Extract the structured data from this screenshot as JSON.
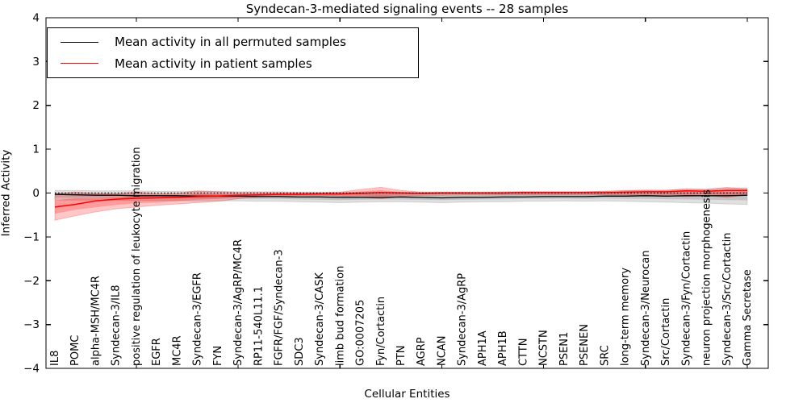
{
  "figure": {
    "title": "Syndecan-3-mediated signaling events -- 28 samples",
    "xlabel": "Cellular Entities",
    "ylabel": "Inferred Activity"
  },
  "legend": {
    "position": "upper-left",
    "items": [
      {
        "label": "Mean activity in all permuted samples",
        "color": "#000000"
      },
      {
        "label": "Mean activity in patient samples",
        "color": "#ff0000"
      }
    ]
  },
  "chart_data": {
    "type": "line",
    "title": "Syndecan-3-mediated signaling events -- 28 samples",
    "xlabel": "Cellular Entities",
    "ylabel": "Inferred Activity",
    "ylim": [
      -4,
      4
    ],
    "yticks": [
      4,
      3,
      2,
      1,
      0,
      -1,
      -2,
      -3,
      -4
    ],
    "xtick_positions": [
      4,
      9,
      14,
      19,
      24,
      29,
      34
    ],
    "grid": false,
    "zero_reference_line": 0,
    "categories": [
      "IL8",
      "POMC",
      "alpha-MSH/MC4R",
      "Syndecan-3/IL8",
      "positive regulation of leukocyte migration",
      "EGFR",
      "MC4R",
      "Syndecan-3/EGFR",
      "FYN",
      "Syndecan-3/AgRP/MC4R",
      "RP11-540L11.1",
      "FGFR/FGF/Syndecan-3",
      "SDC3",
      "Syndecan-3/CASK",
      "limb bud formation",
      "GO:0007205",
      "Fyn/Cortactin",
      "PTN",
      "AGRP",
      "NCAN",
      "Syndecan-3/AgRP",
      "APH1A",
      "APH1B",
      "CTTN",
      "NCSTN",
      "PSEN1",
      "PSENEN",
      "SRC",
      "long-term memory",
      "Syndecan-3/Neurocan",
      "Src/Cortactin",
      "Syndecan-3/Fyn/Cortactin",
      "neuron projection morphogenesis",
      "Syndecan-3/Src/Cortactin",
      "Gamma Secretase"
    ],
    "series": [
      {
        "name": "Mean activity in all permuted samples",
        "color": "#000000",
        "values": [
          -0.03,
          -0.04,
          -0.05,
          -0.05,
          -0.06,
          -0.06,
          -0.06,
          -0.07,
          -0.07,
          -0.07,
          -0.08,
          -0.08,
          -0.09,
          -0.09,
          -0.1,
          -0.1,
          -0.1,
          -0.09,
          -0.1,
          -0.11,
          -0.1,
          -0.1,
          -0.09,
          -0.09,
          -0.08,
          -0.08,
          -0.08,
          -0.07,
          -0.07,
          -0.06,
          -0.07,
          -0.06,
          -0.06,
          -0.06,
          -0.05
        ]
      },
      {
        "name": "Mean activity in patient samples",
        "color": "#ff0000",
        "values": [
          -0.32,
          -0.26,
          -0.18,
          -0.14,
          -0.12,
          -0.11,
          -0.1,
          -0.08,
          -0.07,
          -0.05,
          -0.04,
          -0.03,
          -0.03,
          -0.02,
          -0.02,
          -0.01,
          0.01,
          0.0,
          -0.01,
          0.0,
          0.0,
          0.0,
          0.0,
          0.01,
          0.01,
          0.01,
          0.01,
          0.01,
          0.02,
          0.03,
          0.03,
          0.05,
          0.04,
          0.06,
          0.06
        ]
      }
    ],
    "bands": [
      {
        "name": "permuted-sample-range",
        "color": "#000000",
        "opacity": 0.12,
        "low": [
          -0.16,
          -0.16,
          -0.16,
          -0.17,
          -0.17,
          -0.17,
          -0.17,
          -0.18,
          -0.18,
          -0.18,
          -0.19,
          -0.19,
          -0.2,
          -0.21,
          -0.22,
          -0.21,
          -0.2,
          -0.2,
          -0.21,
          -0.22,
          -0.21,
          -0.2,
          -0.2,
          -0.19,
          -0.19,
          -0.18,
          -0.19,
          -0.18,
          -0.19,
          -0.2,
          -0.21,
          -0.22,
          -0.23,
          -0.25,
          -0.26
        ],
        "high": [
          0.06,
          0.06,
          0.05,
          0.05,
          0.05,
          0.04,
          0.04,
          0.04,
          0.04,
          0.03,
          0.03,
          0.03,
          0.02,
          0.02,
          0.02,
          0.02,
          0.02,
          0.02,
          0.02,
          0.02,
          0.02,
          0.02,
          0.03,
          0.03,
          0.03,
          0.03,
          0.03,
          0.04,
          0.05,
          0.06,
          0.07,
          0.08,
          0.09,
          0.11,
          0.12
        ]
      },
      {
        "name": "patient-sample-range",
        "color": "#ff0000",
        "opacity": 0.22,
        "low": [
          -0.62,
          -0.52,
          -0.43,
          -0.36,
          -0.32,
          -0.28,
          -0.25,
          -0.22,
          -0.19,
          -0.13,
          -0.09,
          -0.07,
          -0.06,
          -0.06,
          -0.07,
          -0.1,
          -0.13,
          -0.08,
          -0.05,
          -0.05,
          -0.04,
          -0.04,
          -0.04,
          -0.04,
          -0.04,
          -0.04,
          -0.04,
          -0.04,
          -0.05,
          -0.05,
          -0.06,
          -0.08,
          -0.06,
          -0.1,
          -0.05
        ],
        "high": [
          -0.02,
          0.02,
          -0.01,
          -0.02,
          0.03,
          -0.02,
          -0.01,
          0.05,
          0.03,
          0.01,
          0.01,
          0.01,
          0.01,
          0.01,
          0.02,
          0.08,
          0.13,
          0.06,
          0.02,
          0.02,
          0.02,
          0.02,
          0.02,
          0.03,
          0.03,
          0.03,
          0.03,
          0.04,
          0.06,
          0.07,
          0.06,
          0.1,
          0.08,
          0.13,
          0.09
        ]
      }
    ]
  }
}
